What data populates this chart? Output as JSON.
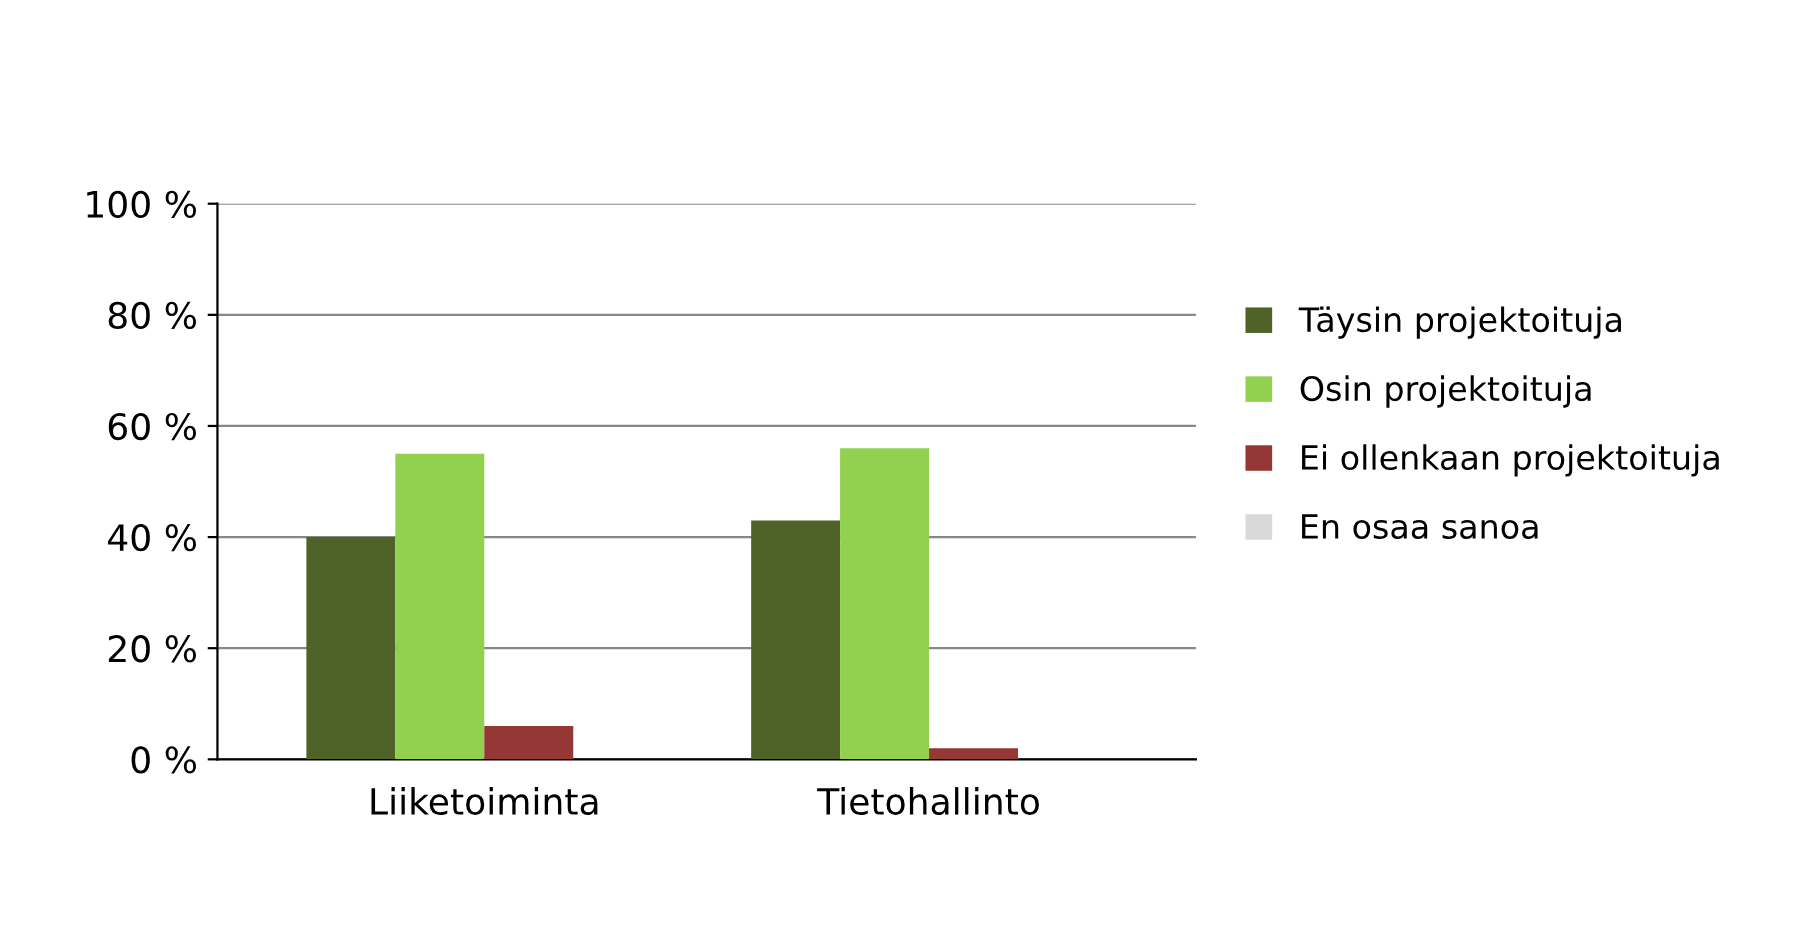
{
  "chart_data": {
    "type": "bar",
    "categories": [
      "Liiketoiminta",
      "Tietohallinto"
    ],
    "series": [
      {
        "name": "Täysin projektoituja",
        "color": "#4f6228",
        "values": [
          40,
          43
        ]
      },
      {
        "name": "Osin projektoituja",
        "color": "#92d050",
        "values": [
          55,
          56
        ]
      },
      {
        "name": "Ei ollenkaan projektoituja",
        "color": "#953735",
        "values": [
          6,
          2
        ]
      },
      {
        "name": "En osaa sanoa",
        "color": "#d9d9d9",
        "values": [
          0,
          0
        ]
      }
    ],
    "ylim": [
      0,
      100
    ],
    "yticks": [
      {
        "value": 0,
        "label": "0 %"
      },
      {
        "value": 20,
        "label": "20 %"
      },
      {
        "value": 40,
        "label": "40 %"
      },
      {
        "value": 60,
        "label": "60 %"
      },
      {
        "value": 80,
        "label": "80 %"
      },
      {
        "value": 100,
        "label": "100 %"
      }
    ],
    "grid": "y",
    "legend": "right"
  }
}
